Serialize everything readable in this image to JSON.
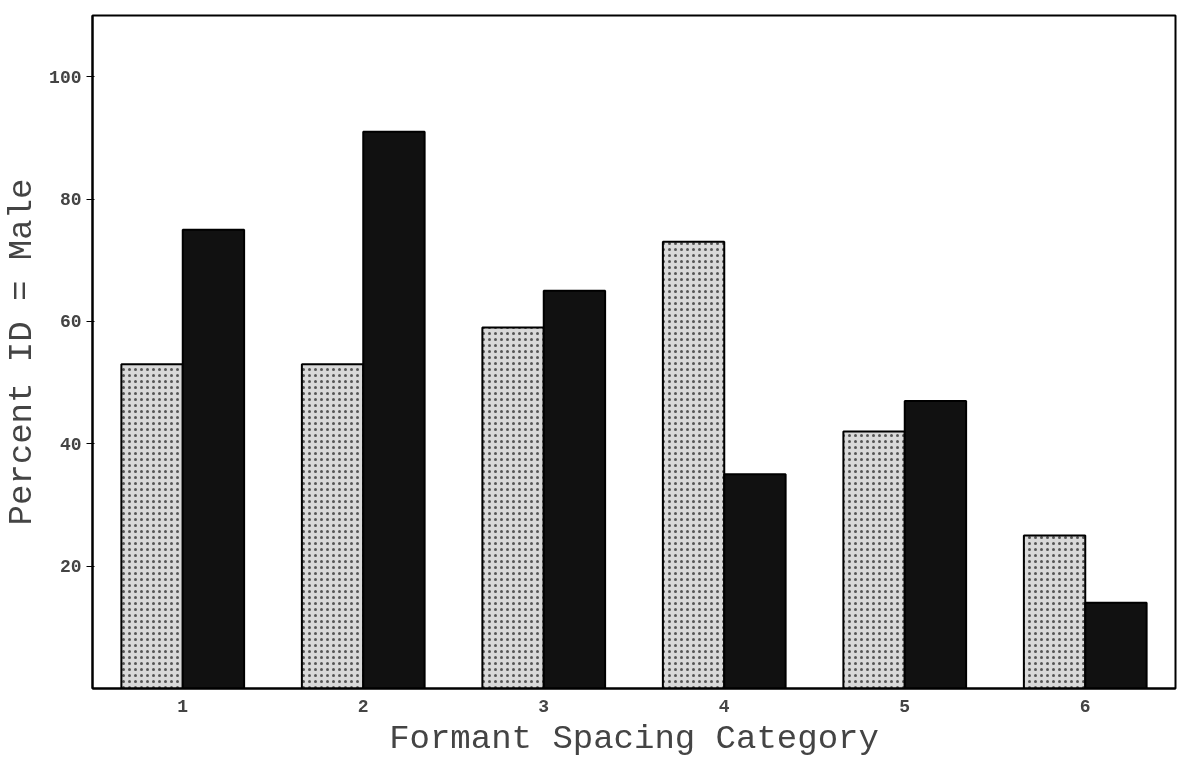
{
  "chart_data": {
    "type": "bar",
    "xlabel": "Formant Spacing Category",
    "ylabel": "Percent ID = Male",
    "categories": [
      "1",
      "2",
      "3",
      "4",
      "5",
      "6"
    ],
    "series": [
      {
        "color": "#d9d9d9",
        "values": [
          53,
          53,
          59,
          73,
          42,
          25
        ]
      },
      {
        "color": "#111111",
        "values": [
          75,
          91,
          65,
          35,
          47,
          14
        ]
      }
    ],
    "ylim": [
      0,
      110
    ],
    "yticks": [
      20,
      40,
      60,
      80,
      100
    ],
    "grid": false
  }
}
